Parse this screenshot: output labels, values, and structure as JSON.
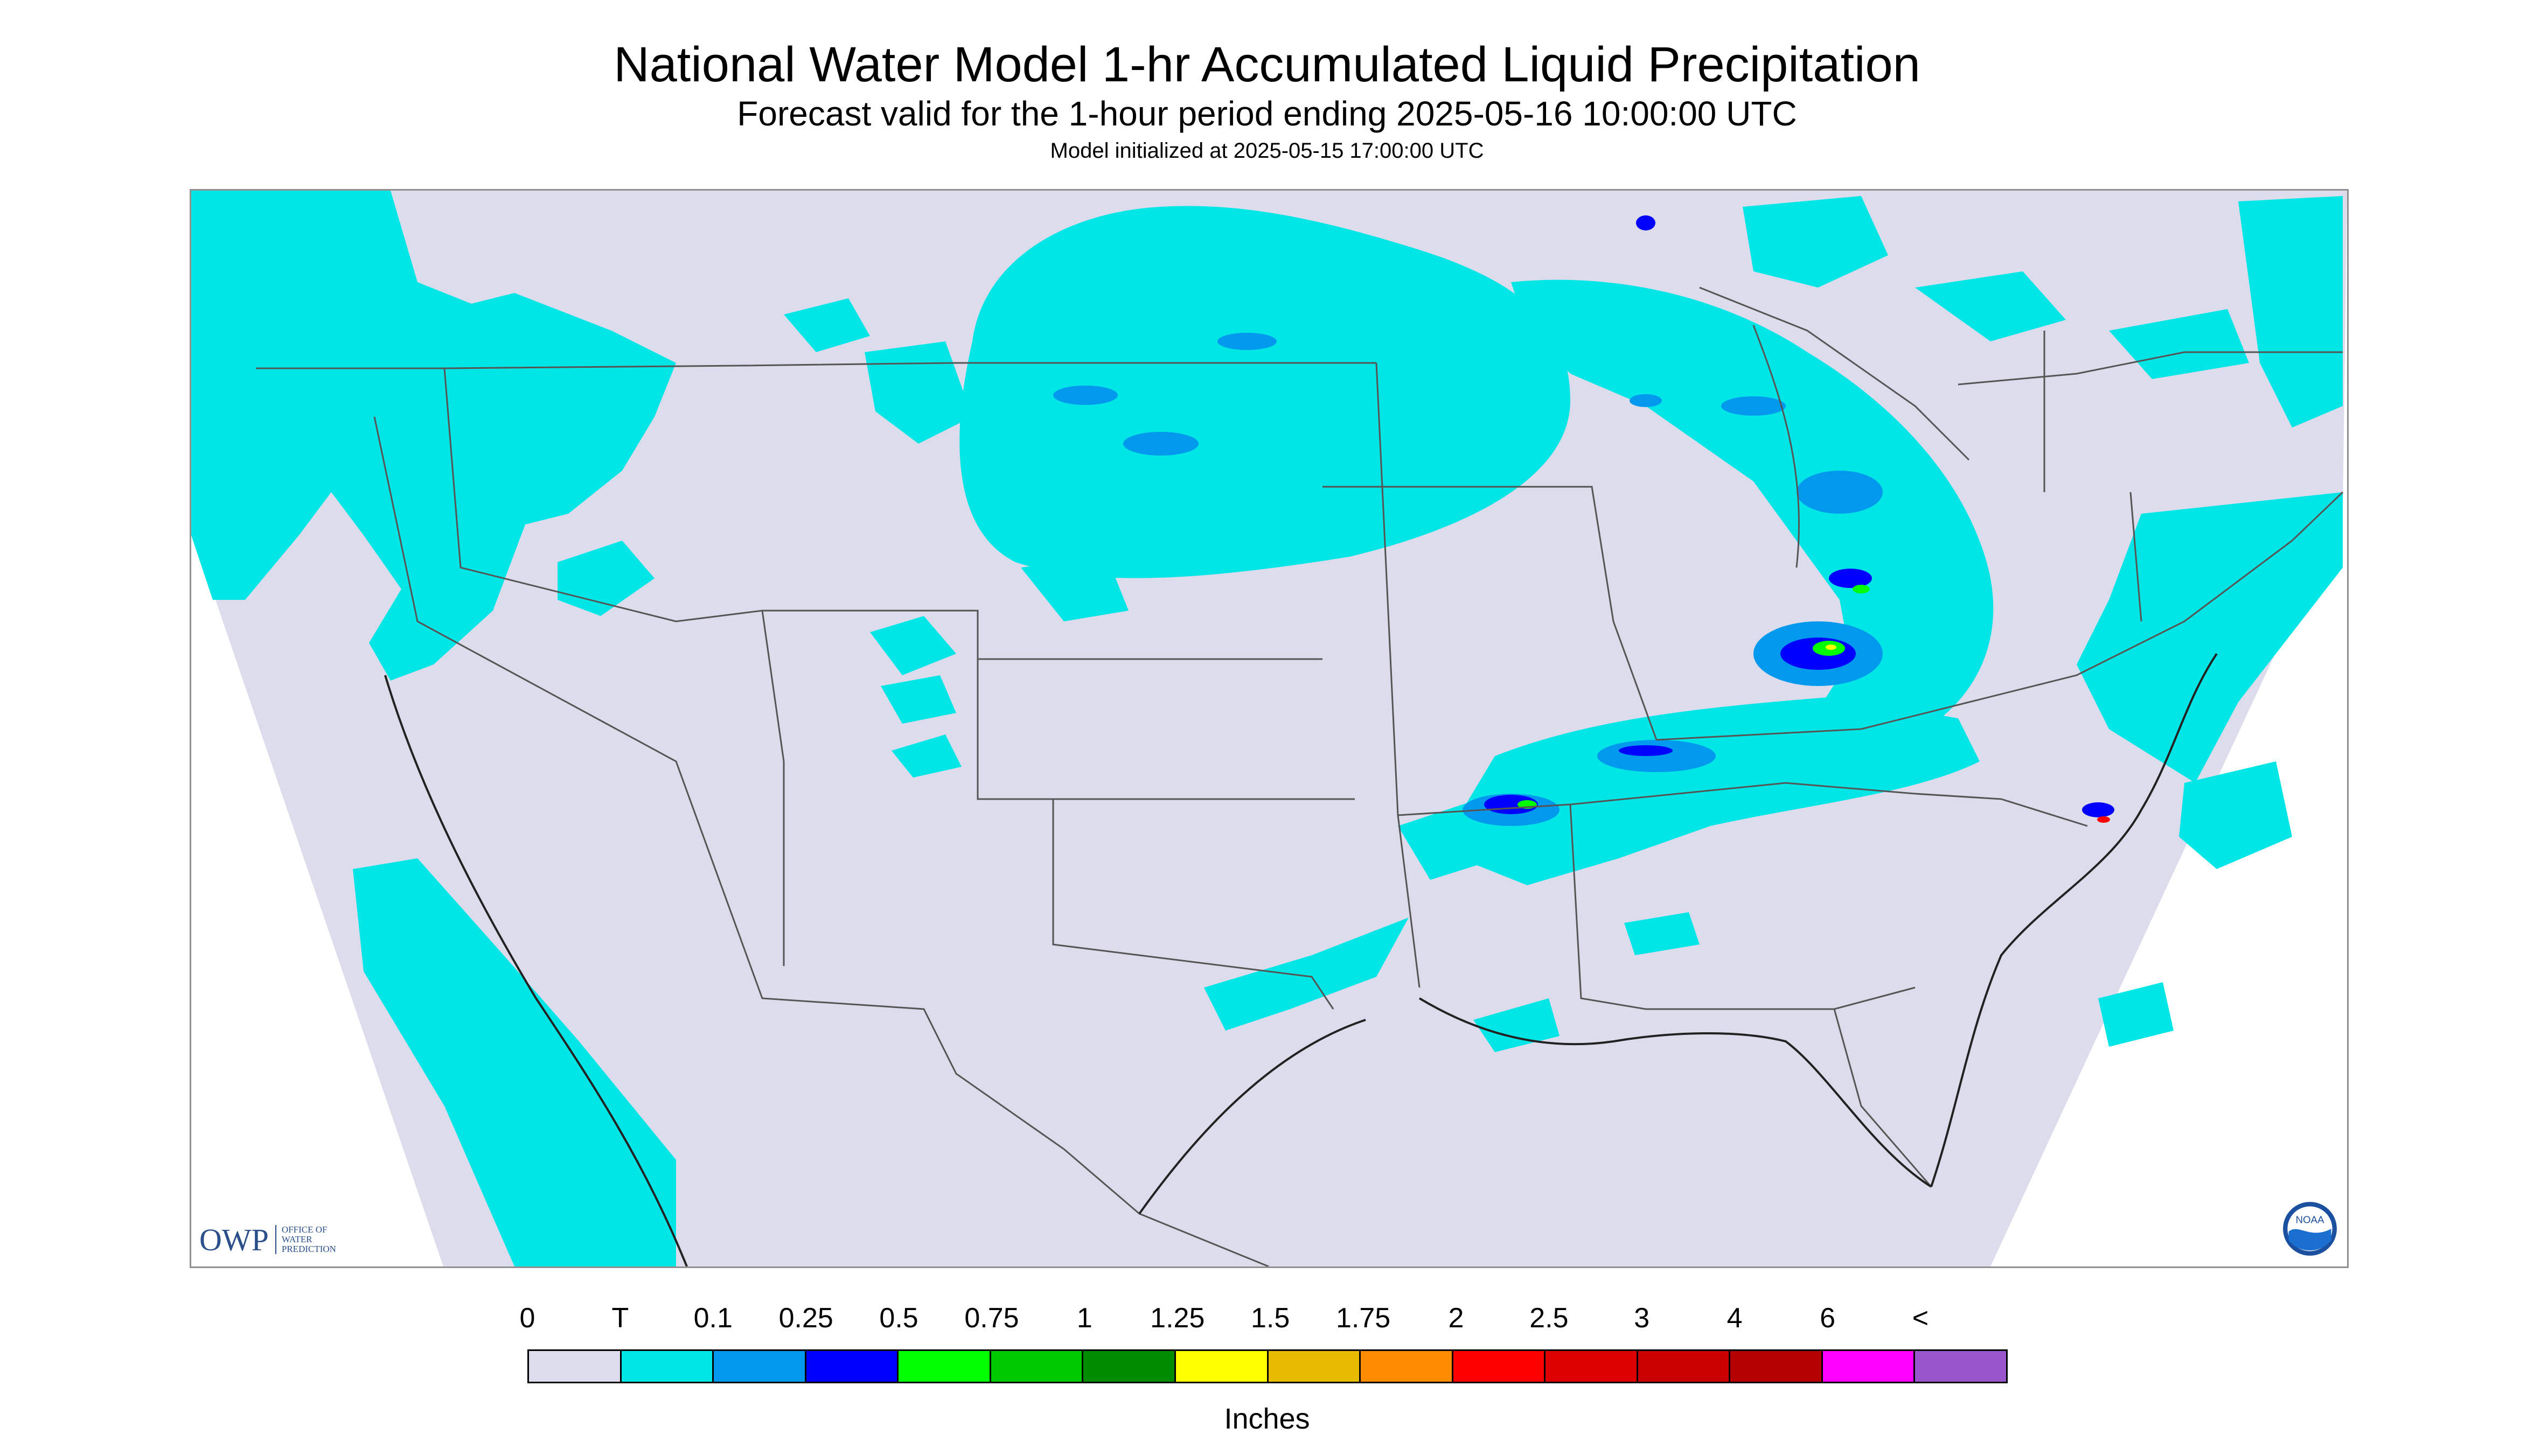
{
  "title": "National Water Model 1-hr Accumulated Liquid Precipitation",
  "subtitle": "Forecast valid for the 1-hour period ending 2025-05-16 10:00:00 UTC",
  "init_line": "Model initialized at 2025-05-15 17:00:00 UTC",
  "legend": {
    "unit": "Inches",
    "labels": [
      "0",
      "T",
      "0.1",
      "0.25",
      "0.5",
      "0.75",
      "1",
      "1.25",
      "1.5",
      "1.75",
      "2",
      "2.5",
      "3",
      "4",
      "6",
      "<"
    ],
    "colors": [
      "#dcdcec",
      "#00e6e6",
      "#0099ee",
      "#0000ff",
      "#00ff00",
      "#00c800",
      "#008c00",
      "#ffff00",
      "#e6bb00",
      "#ff8c00",
      "#ff0000",
      "#dd0000",
      "#c80000",
      "#b40000",
      "#ff00ff",
      "#9955cc"
    ]
  },
  "colors": {
    "background": "#dcdcec",
    "trace": "#00e6e6",
    "light": "#0099ee",
    "medium": "#0000ff",
    "heavy_green": "#00ff00",
    "heavy_yellow": "#ffff00",
    "heavy_red": "#ff0000",
    "border_lines": "#555555"
  },
  "logos": {
    "owp_mark": "OWP",
    "owp_text": "OFFICE OF WATER PREDICTION",
    "noaa_text": "NOAA"
  }
}
